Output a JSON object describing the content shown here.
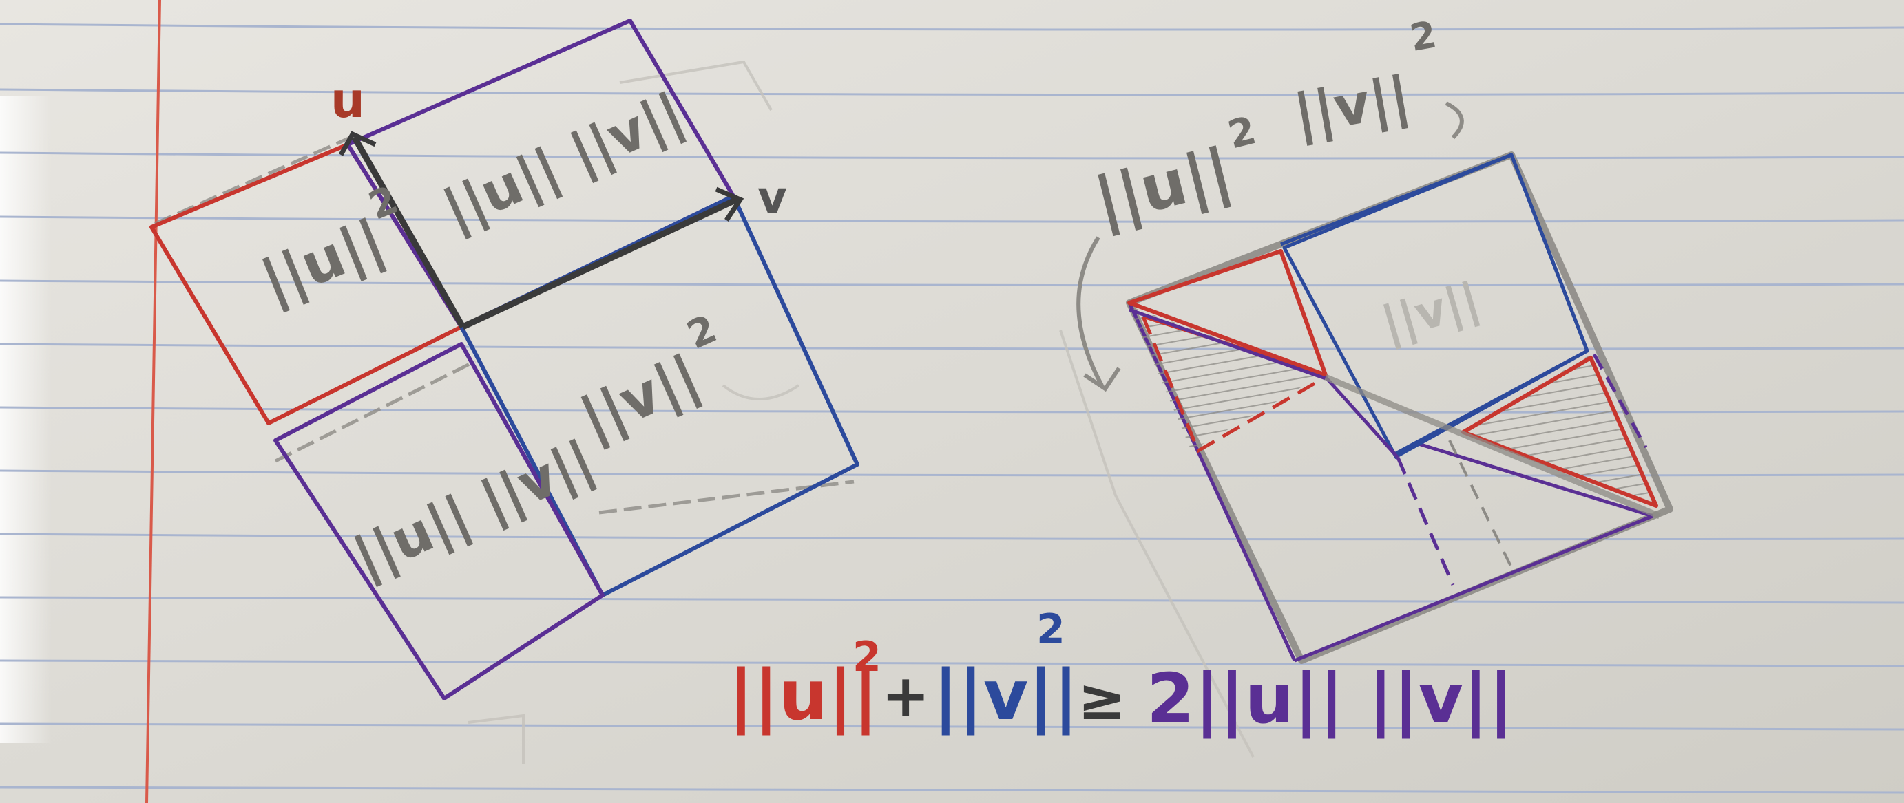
{
  "diagram": {
    "left": {
      "vector_u": "u",
      "vector_v": "v",
      "square_u": "||u||",
      "square_u_exp": "2",
      "square_v": "||v||",
      "square_v_exp": "2",
      "rect_top": "||u|| ||v||",
      "rect_bottom": "||u|| ||v||"
    },
    "right": {
      "label_u": "||u||",
      "label_u_exp": "2",
      "label_v": "||v||",
      "label_v_exp": "2",
      "inner_label": "||v||"
    },
    "formula": {
      "term1": "||u||",
      "term1_exp": "2",
      "plus": "+",
      "term2": "||v||",
      "term2_exp": "2",
      "geq": "≥",
      "rhs": "2||u|| ||v||"
    }
  },
  "colors": {
    "u": "#c8362e",
    "v": "#2c4a9c",
    "uv": "#5a2f94",
    "pencil": "#6f6d69",
    "paper": "#e3e1dc",
    "margin": "#d95a4a",
    "rule": "#a9b5cf"
  }
}
